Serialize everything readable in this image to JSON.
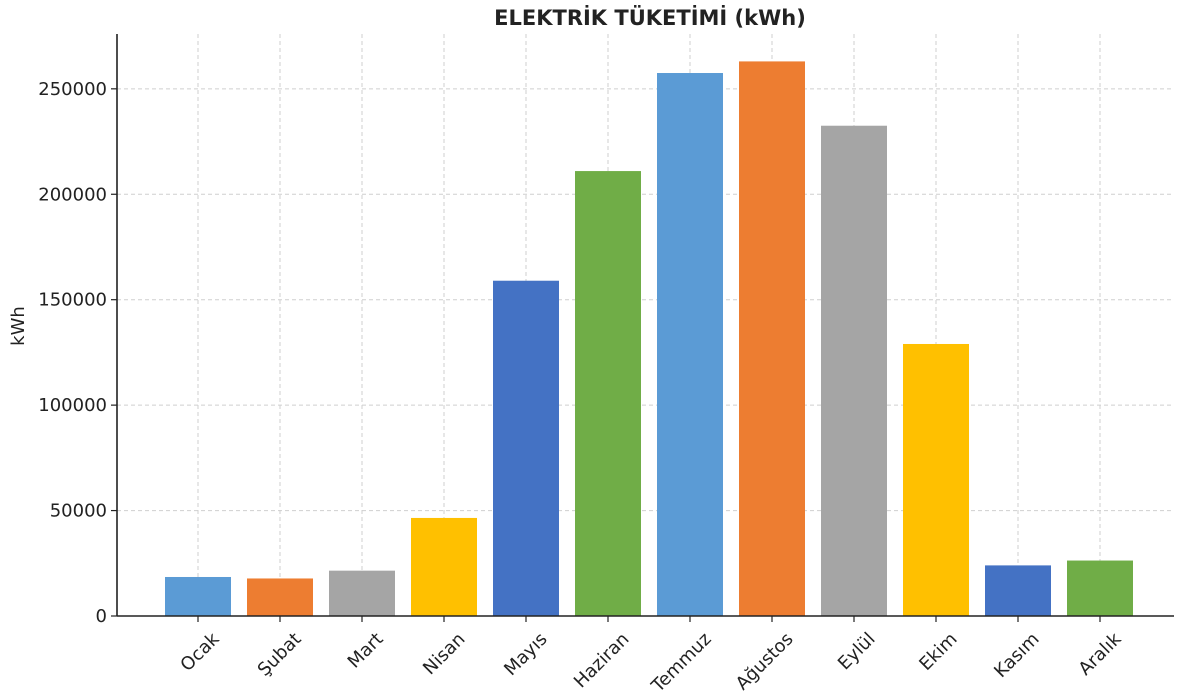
{
  "chart_data": {
    "type": "bar",
    "title": "ELEKTRİK TÜKETİMİ (kWh)",
    "xlabel": "",
    "ylabel": "kWh",
    "categories": [
      "Ocak",
      "Şubat",
      "Mart",
      "Nisan",
      "Mayıs",
      "Haziran",
      "Temmuz",
      "Ağustos",
      "Eylül",
      "Ekim",
      "Kasım",
      "Aralık"
    ],
    "values": [
      18500,
      17800,
      21500,
      46500,
      159000,
      211000,
      257500,
      263000,
      232500,
      129000,
      24000,
      26300
    ],
    "bar_colors": [
      "#5b9bd5",
      "#ed7d31",
      "#a5a5a5",
      "#ffc000",
      "#4472c4",
      "#70ad47",
      "#5b9bd5",
      "#ed7d31",
      "#a5a5a5",
      "#ffc000",
      "#4472c4",
      "#70ad47"
    ],
    "ylim": [
      0,
      276000
    ],
    "yticks": [
      0,
      50000,
      100000,
      150000,
      200000,
      250000
    ],
    "grid": true,
    "grid_style": "dashed",
    "legend": "none"
  }
}
